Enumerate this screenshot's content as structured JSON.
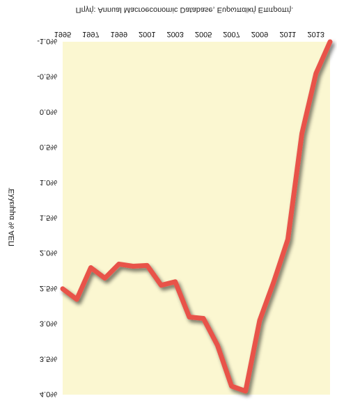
{
  "chart_data": {
    "type": "line",
    "title": "",
    "source": "Πηγή: Annual Macroeconomic Database, Ευρωπαϊκή Επιτροπή.",
    "xlabel": "",
    "ylabel": "Έλλειμμα % ΑΕΠ",
    "x_tick_labels": [
      "1995",
      "1997",
      "1999",
      "2001",
      "2003",
      "2005",
      "2007",
      "2009",
      "2011",
      "2013"
    ],
    "y_tick_labels": [
      "-1.0%",
      "-0.5%",
      "0.0%",
      "0.5%",
      "1.0%",
      "1.5%",
      "2.0%",
      "2.5%",
      "3.0%",
      "3.5%",
      "4.0%"
    ],
    "y_axis_inverted": true,
    "xlim": [
      1995,
      2014
    ],
    "ylim": [
      -1.0,
      4.0
    ],
    "x": [
      1995,
      1996,
      1997,
      1998,
      1999,
      2000,
      2001,
      2002,
      2003,
      2004,
      2005,
      2006,
      2007,
      2008,
      2009,
      2010,
      2011,
      2012,
      2013,
      2014
    ],
    "series": [
      {
        "values": [
          2.5,
          2.65,
          2.2,
          2.35,
          2.15,
          2.18,
          2.17,
          2.45,
          2.4,
          2.9,
          2.92,
          3.3,
          3.88,
          3.95,
          2.95,
          2.4,
          1.8,
          0.3,
          -0.55,
          -1.0
        ]
      }
    ],
    "grid": false,
    "legend": "none",
    "colors": {
      "line": "#e8524a",
      "plot_background": "#fbf7d1",
      "shadow": "#000000"
    }
  }
}
